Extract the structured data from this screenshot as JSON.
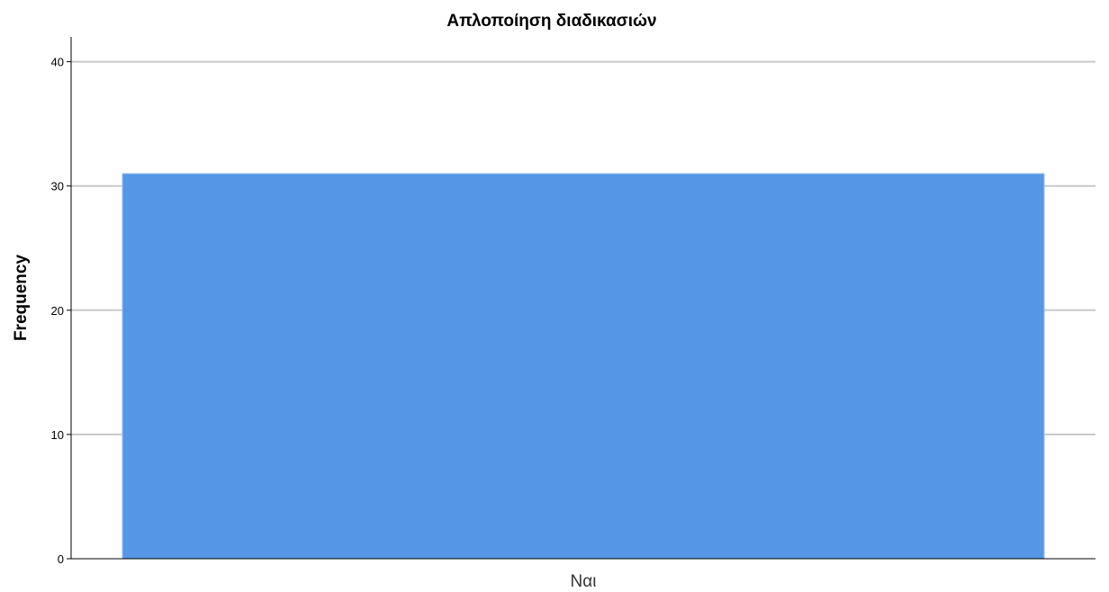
{
  "chart_data": {
    "type": "bar",
    "title": "Απλοποίηση διαδικασιών",
    "xlabel": "",
    "ylabel": "Frequency",
    "categories": [
      "Ναι"
    ],
    "values": [
      31
    ],
    "ylim": [
      0,
      42
    ],
    "yticks": [
      0,
      10,
      20,
      30,
      40
    ],
    "grid": true,
    "legend": "none",
    "colors": {
      "bar": "#5596e6",
      "bar_stroke": "#a9c8ee",
      "grid": "#c8c8c8",
      "axis": "#000000"
    }
  }
}
